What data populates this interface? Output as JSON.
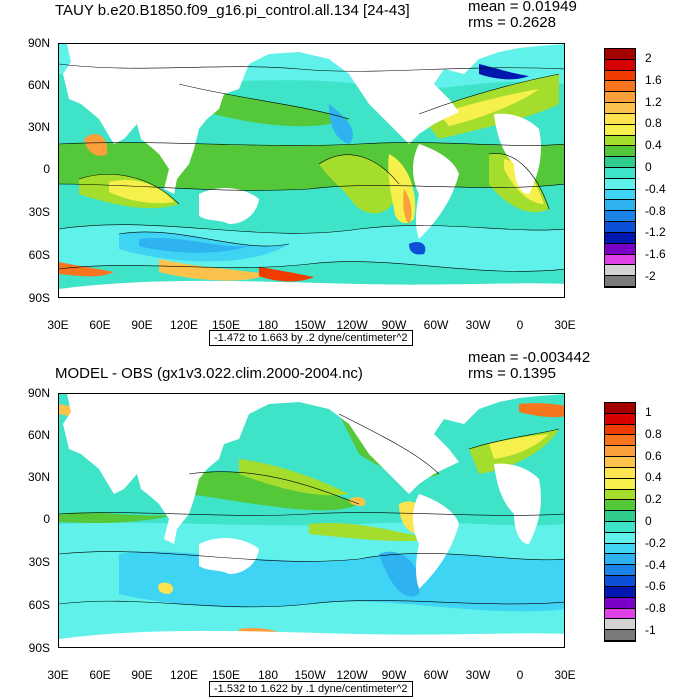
{
  "panels": [
    {
      "title": "TAUY b.e20.B1850.f09_g16.pi_control.all.134 [24-43]",
      "mean": "mean = 0.01949",
      "rms": "rms = 0.2628",
      "range_note": "-1.472 to 1.663 by .2 dyne/centimeter^2",
      "lat_labels": [
        "90N",
        "60N",
        "30N",
        "0",
        "30S",
        "60S",
        "90S"
      ],
      "lon_labels": [
        "30E",
        "60E",
        "90E",
        "120E",
        "150E",
        "180",
        "150W",
        "120W",
        "90W",
        "60W",
        "30W",
        "0",
        "30E"
      ],
      "colorbar_labels": [
        "2",
        "1.6",
        "1.2",
        "0.8",
        "0.4",
        "0",
        "-0.4",
        "-0.8",
        "-1.2",
        "-1.6",
        "-2"
      ],
      "colorbar_colors": [
        "#a50000",
        "#d60000",
        "#f03c00",
        "#f7751f",
        "#fb9f3a",
        "#fcc24c",
        "#fde34f",
        "#f6f04c",
        "#a4dd2c",
        "#55c83a",
        "#2fcc8c",
        "#3fe3c8",
        "#5ff1ea",
        "#40d4f4",
        "#2fb3f0",
        "#1c84e8",
        "#0d50d8",
        "#0018b0",
        "#7a00c8",
        "#e040e8",
        "#d2d2d2",
        "#7a7a7a"
      ]
    },
    {
      "title": "MODEL - OBS (gx1v3.022.clim.2000-2004.nc)",
      "mean": "mean = -0.003442",
      "rms": "rms = 0.1395",
      "range_note": "-1.532 to 1.622 by .1 dyne/centimeter^2",
      "lat_labels": [
        "90N",
        "60N",
        "30N",
        "0",
        "30S",
        "60S",
        "90S"
      ],
      "lon_labels": [
        "30E",
        "60E",
        "90E",
        "120E",
        "150E",
        "180",
        "150W",
        "120W",
        "90W",
        "60W",
        "30W",
        "0",
        "30E"
      ],
      "colorbar_labels": [
        "1",
        "0.8",
        "0.6",
        "0.4",
        "0.2",
        "0",
        "-0.2",
        "-0.4",
        "-0.6",
        "-0.8",
        "-1"
      ],
      "colorbar_colors": [
        "#a50000",
        "#d60000",
        "#f03c00",
        "#f7751f",
        "#fb9f3a",
        "#fcc24c",
        "#fde34f",
        "#f6f04c",
        "#a4dd2c",
        "#55c83a",
        "#2fcc8c",
        "#3fe3c8",
        "#5ff1ea",
        "#40d4f4",
        "#2fb3f0",
        "#1c84e8",
        "#0d50d8",
        "#0018b0",
        "#7a00c8",
        "#e040e8",
        "#d2d2d2",
        "#7a7a7a"
      ]
    }
  ],
  "colors": {
    "ocean_base_top": "#3fe3c8",
    "ocean_base_bottom": "#3fe3c8",
    "land": "#ffffff"
  }
}
